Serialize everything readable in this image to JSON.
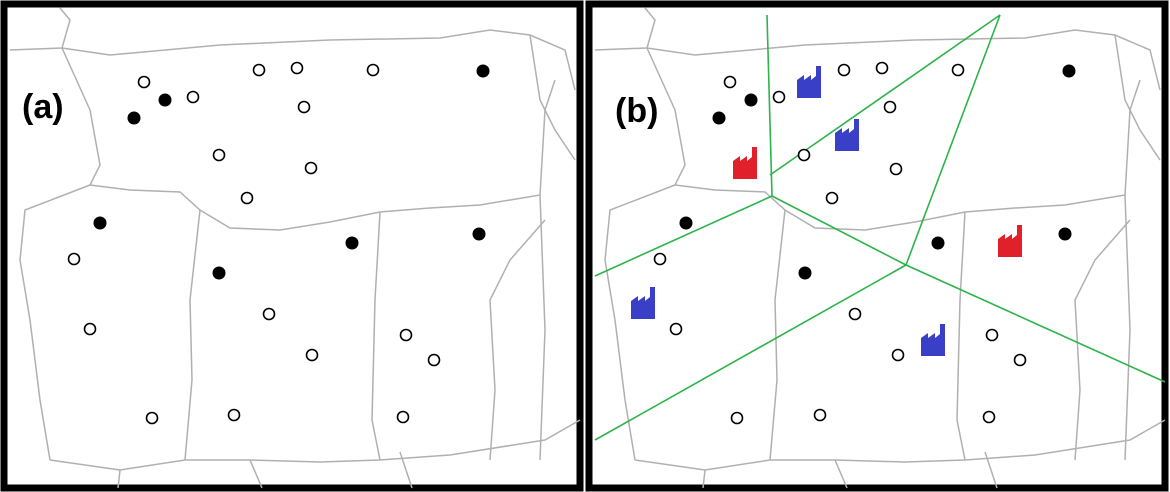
{
  "panel_a": {
    "label": "(a)"
  },
  "panel_b": {
    "label": "(b)"
  },
  "colors": {
    "frame": "#000000",
    "boundary": "#b0b0b0",
    "voronoi": "#2db34a",
    "open_site": "#000000",
    "filled_site": "#000000",
    "factory_red": "#e0202a",
    "factory_blue": "#3a3fc8"
  },
  "legend_semantics": {
    "open_circle_icon": "unfilled point",
    "filled_circle_icon": "filled point",
    "factory_icon": "factory"
  }
}
